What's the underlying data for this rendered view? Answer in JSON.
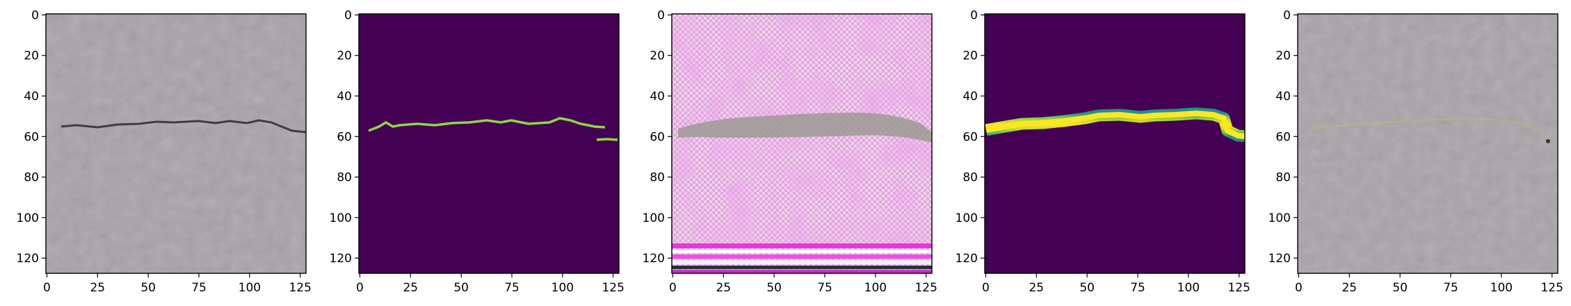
{
  "figure": {
    "panel_count": 5,
    "image_size": 128,
    "x_ticks": [
      "0",
      "25",
      "50",
      "75",
      "100",
      "125"
    ],
    "y_ticks": [
      "0",
      "20",
      "40",
      "60",
      "80",
      "100",
      "120"
    ],
    "panels": [
      {
        "name": "input-photo",
        "content": "grey concrete surface with a thin dark horizontal crack"
      },
      {
        "name": "ground-truth-mask",
        "content": "dark purple field with a thin green crack line"
      },
      {
        "name": "generated-image",
        "content": "pink-magenta textured image with a grey crack band and striped bottom rows"
      },
      {
        "name": "predicted-mask",
        "content": "dark purple field with a thick yellow-green crack band"
      },
      {
        "name": "overlay",
        "content": "grey concrete with a faint yellowish crack overlay"
      }
    ],
    "colors": {
      "concrete": "#a5a1a5",
      "viridis_bg": "#440154",
      "viridis_mid": "#21918c",
      "viridis_hi": "#fde725",
      "viridis_green": "#90d743",
      "pink": "#eec4ea",
      "magenta": "#d060c8"
    }
  }
}
